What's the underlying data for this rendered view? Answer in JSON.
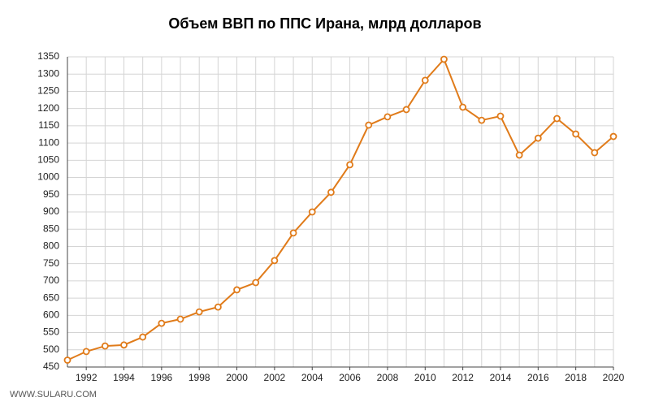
{
  "chart_data": {
    "type": "line",
    "title": "Объем ВВП по ППС Ирана, млрд долларов",
    "watermark": "WWW.SULARU.COM",
    "x": [
      1991,
      1992,
      1993,
      1994,
      1995,
      1996,
      1997,
      1998,
      1999,
      2000,
      2001,
      2002,
      2003,
      2004,
      2005,
      2006,
      2007,
      2008,
      2009,
      2010,
      2011,
      2012,
      2013,
      2014,
      2015,
      2016,
      2017,
      2018,
      2019,
      2020
    ],
    "series": [
      {
        "name": "ВВП",
        "color": "#e07b1a",
        "values": [
          470,
          495,
          511,
          514,
          537,
          577,
          589,
          610,
          624,
          674,
          695,
          759,
          839,
          900,
          957,
          1037,
          1152,
          1176,
          1197,
          1282,
          1343,
          1204,
          1166,
          1178,
          1065,
          1114,
          1171,
          1126,
          1072,
          1119
        ]
      }
    ],
    "xlim": [
      1991,
      2020
    ],
    "xticks": [
      1992,
      1994,
      1996,
      1998,
      2000,
      2002,
      2004,
      2006,
      2008,
      2010,
      2012,
      2014,
      2016,
      2018,
      2020
    ],
    "ylim": [
      450,
      1350
    ],
    "yticks": [
      450,
      500,
      550,
      600,
      650,
      700,
      750,
      800,
      850,
      900,
      950,
      1000,
      1050,
      1100,
      1150,
      1200,
      1250,
      1300,
      1350
    ],
    "grid": true
  }
}
